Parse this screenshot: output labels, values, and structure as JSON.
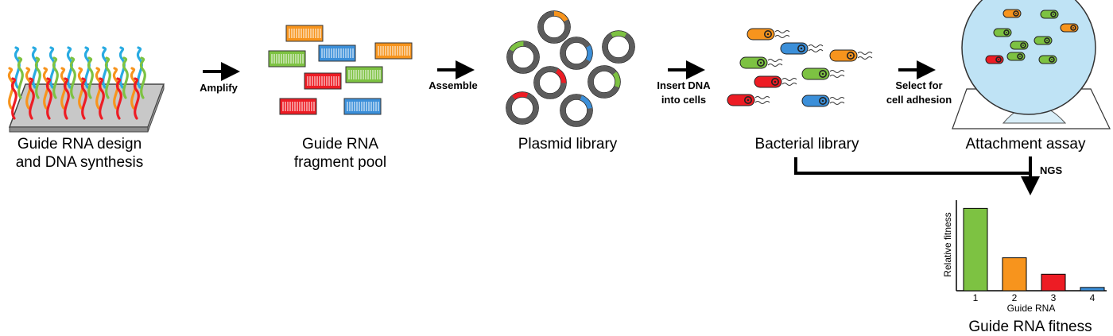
{
  "stages": {
    "synthesis": {
      "line1": "Guide RNA design",
      "line2": "and DNA synthesis"
    },
    "fragments": {
      "line1": "Guide RNA",
      "line2": "fragment pool"
    },
    "plasmid": {
      "label": "Plasmid library"
    },
    "bacterial": {
      "label": "Bacterial library"
    },
    "attachment": {
      "label": "Attachment assay"
    },
    "fitness": {
      "label": "Guide RNA fitness"
    }
  },
  "arrows": {
    "amplify": "Amplify",
    "assemble": "Assemble",
    "insert": {
      "line1": "Insert DNA",
      "line2": "into cells"
    },
    "select": {
      "line1": "Select for",
      "line2": "cell adhesion"
    },
    "ngs": "NGS"
  },
  "colors": {
    "green": "#7DC242",
    "orange": "#F7941D",
    "red": "#ED1C24",
    "blue": "#3B8FD9",
    "cyan": "#29ABE2",
    "ring": "#5c5c5c",
    "dish": "#bfe3f5"
  },
  "chart_data": {
    "type": "bar",
    "categories": [
      "1",
      "2",
      "3",
      "4"
    ],
    "values": [
      100,
      40,
      20,
      4
    ],
    "ylim": [
      0,
      110
    ],
    "xlabel": "Guide RNA",
    "ylabel": "Relative fitness",
    "bar_colors": [
      "#7DC242",
      "#F7941D",
      "#ED1C24",
      "#3B8FD9"
    ],
    "grid": false
  }
}
